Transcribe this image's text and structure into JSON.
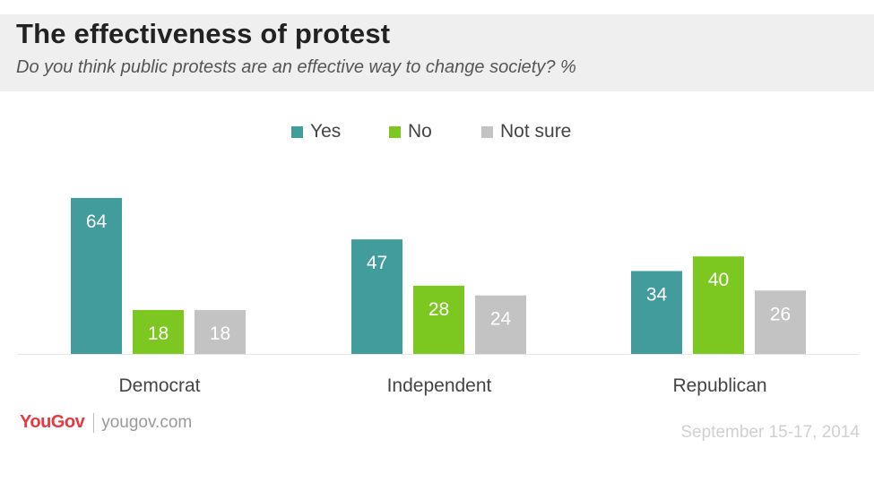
{
  "header": {
    "title": "The effectiveness of protest",
    "subtitle": "Do you think public protests are an effective way to change society? %"
  },
  "legend": {
    "items": [
      {
        "label": "Yes",
        "color": "#439c9c"
      },
      {
        "label": "No",
        "color": "#7dc721"
      },
      {
        "label": "Not sure",
        "color": "#c3c3c3"
      }
    ]
  },
  "chart_data": {
    "type": "bar",
    "title": "The effectiveness of protest",
    "subtitle": "Do you think public protests are an effective way to change society? %",
    "categories": [
      "Democrat",
      "Independent",
      "Republican"
    ],
    "series": [
      {
        "name": "Yes",
        "color": "#439c9c",
        "values": [
          64,
          47,
          34
        ]
      },
      {
        "name": "No",
        "color": "#7dc721",
        "values": [
          18,
          28,
          40
        ]
      },
      {
        "name": "Not sure",
        "color": "#c3c3c3",
        "values": [
          18,
          24,
          26
        ]
      }
    ],
    "ylim": [
      0,
      70
    ],
    "grid": false,
    "legend_position": "top-center",
    "data_labels": true
  },
  "footer": {
    "brand": "YouGov",
    "site": "yougov.com",
    "date": "September 15-17, 2014"
  }
}
